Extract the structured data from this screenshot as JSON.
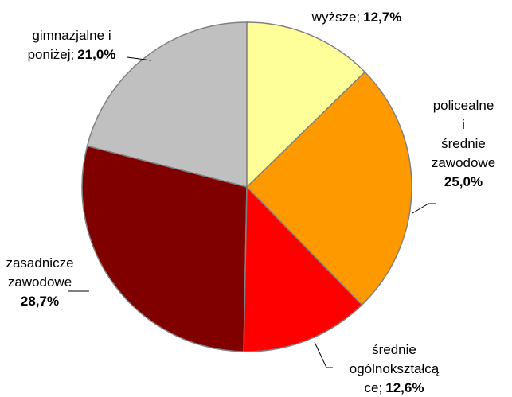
{
  "chart_data": {
    "type": "pie",
    "categories": [
      "wyższe;",
      "policealne i\nśrednie\nzawodowe",
      "średnie\nogólnokształcą\nce;",
      "zasadnicze\nzawodowe",
      "gimnazjalne i\nponiżej;"
    ],
    "values": [
      12.7,
      25.0,
      12.6,
      28.7,
      21.0
    ],
    "value_labels": [
      "12,7%",
      "25,0%",
      "12,6%",
      "28,7%",
      "21,0%"
    ],
    "colors": [
      "#ffff99",
      "#ff9900",
      "#ff0000",
      "#800000",
      "#c0c0c0"
    ]
  }
}
